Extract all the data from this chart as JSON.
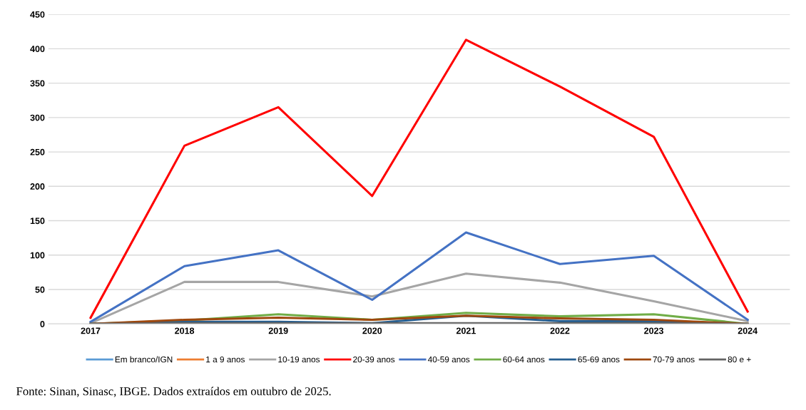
{
  "chart_data": {
    "type": "line",
    "categories": [
      "2017",
      "2018",
      "2019",
      "2020",
      "2021",
      "2022",
      "2023",
      "2024"
    ],
    "series": [
      {
        "name": "Em branco/IGN",
        "color": "#5b9bd5",
        "values": [
          null,
          null,
          null,
          null,
          null,
          null,
          null,
          null
        ]
      },
      {
        "name": "1 a 9 anos",
        "color": "#ed7d31",
        "values": [
          null,
          null,
          null,
          null,
          null,
          null,
          null,
          null
        ]
      },
      {
        "name": "10-19 anos",
        "color": "#a5a5a5",
        "values": [
          1,
          61,
          61,
          40,
          73,
          60,
          33,
          4
        ]
      },
      {
        "name": "20-39 anos",
        "color": "#ff0000",
        "values": [
          9,
          259,
          315,
          186,
          413,
          345,
          272,
          18
        ]
      },
      {
        "name": "40-59 anos",
        "color": "#4472c4",
        "values": [
          3,
          84,
          107,
          35,
          133,
          87,
          99,
          6
        ]
      },
      {
        "name": "60-64 anos",
        "color": "#70ad47",
        "values": [
          0,
          5,
          14,
          6,
          16,
          11,
          14,
          0
        ]
      },
      {
        "name": "65-69 anos",
        "color": "#255e91",
        "values": [
          0,
          3,
          3,
          1,
          12,
          4,
          4,
          0
        ]
      },
      {
        "name": "70-79 anos",
        "color": "#9e480e",
        "values": [
          0,
          6,
          9,
          6,
          12,
          8,
          6,
          0
        ]
      },
      {
        "name": "80 e +",
        "color": "#636363",
        "values": [
          0,
          1,
          1,
          1,
          1,
          1,
          1,
          0
        ]
      }
    ],
    "ylim": [
      0,
      450
    ],
    "yticks": [
      0,
      50,
      100,
      150,
      200,
      250,
      300,
      350,
      400,
      450
    ],
    "grid": "y",
    "legend": "bottom",
    "marker": "none",
    "line_style": "solid",
    "annotations": [
      "Fonte: Sinan, Sinasc, IBGE. Dados extraídos em outubro de 2025."
    ]
  }
}
